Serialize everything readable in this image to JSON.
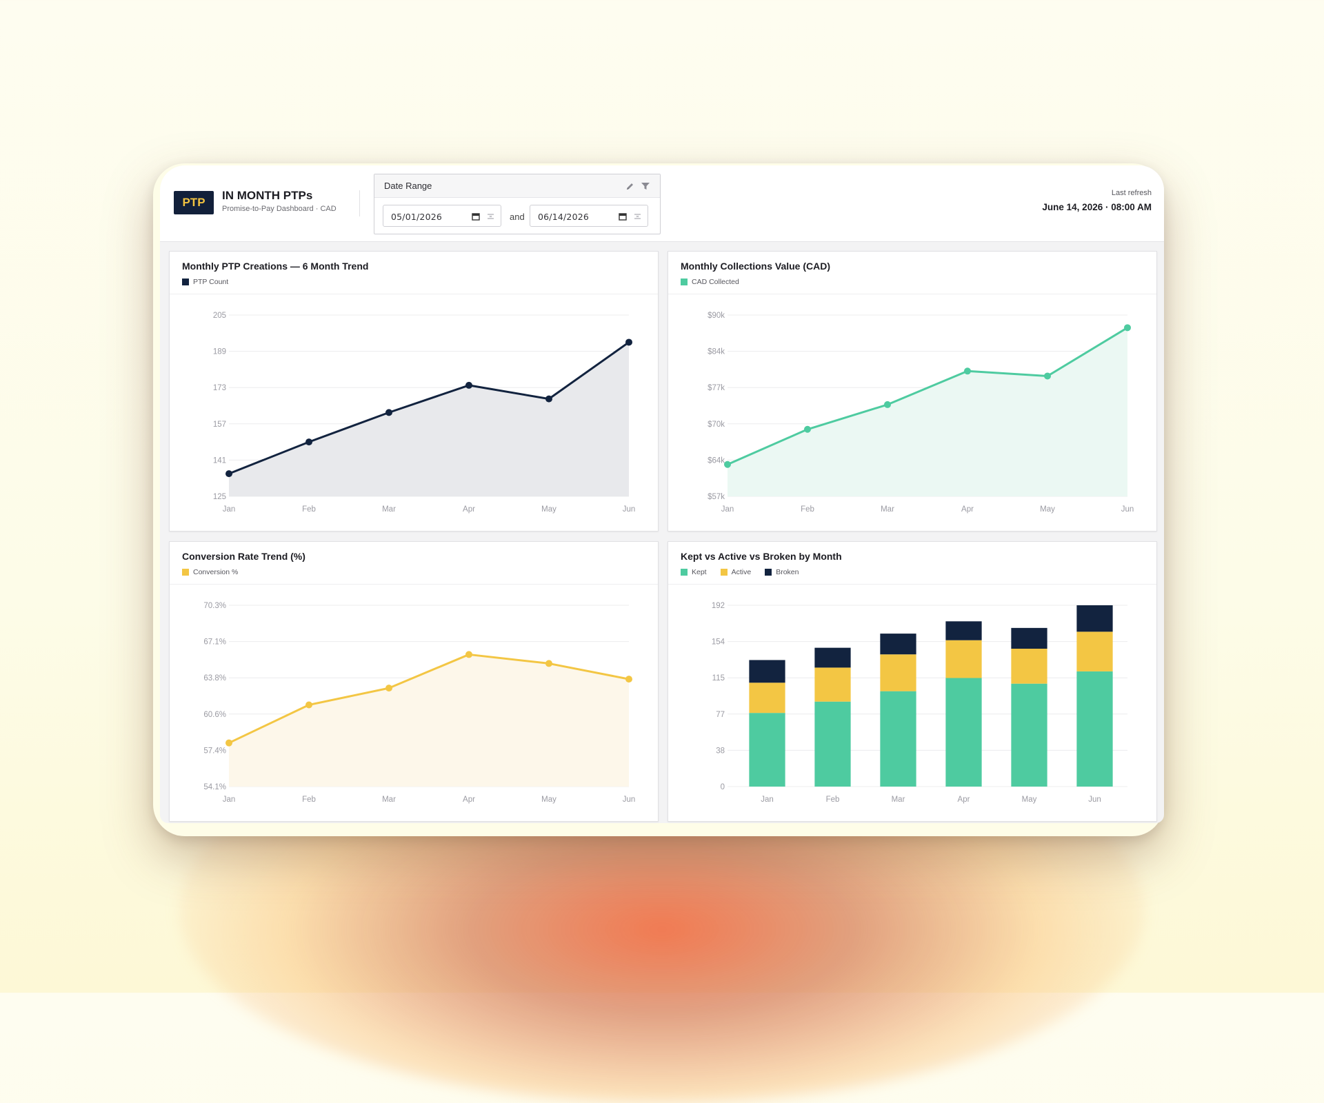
{
  "header": {
    "logo_text": "PTP",
    "title": "IN MONTH PTPs",
    "subtitle": "Promise-to-Pay Dashboard · CAD",
    "refresh_label": "Last refresh",
    "refresh_value": "June 14, 2026 · 08:00 AM"
  },
  "filter": {
    "label": "Date Range",
    "start_value": "05/01/2026",
    "end_value": "06/14/2026",
    "joiner": "and",
    "edit_icon": "pencil-icon",
    "filter_icon": "funnel-icon",
    "calendar_icon": "calendar-icon",
    "clear_icon": "clear-icon"
  },
  "colors": {
    "navy": "#12233f",
    "green": "#4ecba0",
    "yellow": "#f3c644"
  },
  "chart_data": [
    {
      "type": "area",
      "title": "Monthly PTP Creations — 6 Month Trend",
      "categories": [
        "Jan",
        "Feb",
        "Mar",
        "Apr",
        "May",
        "Jun"
      ],
      "series": [
        {
          "name": "PTP Count",
          "values": [
            135,
            149,
            162,
            174,
            168,
            193
          ],
          "color": "#12233f",
          "fill": "#e8e9ec"
        }
      ],
      "yticks": [
        "205",
        "189",
        "173",
        "157",
        "141",
        "125"
      ],
      "ylim": [
        125,
        205
      ],
      "grid": true,
      "legend": "top-left"
    },
    {
      "type": "area",
      "title": "Monthly Collections Value (CAD)",
      "categories": [
        "Jan",
        "Feb",
        "Mar",
        "Apr",
        "May",
        "Jun"
      ],
      "series": [
        {
          "name": "CAD Collected",
          "values": [
            62800,
            69200,
            73700,
            79800,
            78900,
            87700
          ],
          "color": "#4ecba0",
          "fill": "#ebf8f3"
        }
      ],
      "yticks": [
        "$90k",
        "$84k",
        "$77k",
        "$70k",
        "$64k",
        "$57k"
      ],
      "ylim": [
        57000,
        90000
      ],
      "grid": true,
      "legend": "top-left"
    },
    {
      "type": "area",
      "title": "Conversion Rate Trend (%)",
      "categories": [
        "Jan",
        "Feb",
        "Mar",
        "Apr",
        "May",
        "Jun"
      ],
      "series": [
        {
          "name": "Conversion %",
          "values": [
            58.0,
            61.4,
            62.9,
            65.9,
            65.1,
            63.7
          ],
          "color": "#f3c644",
          "fill": "#fdf7ea"
        }
      ],
      "yticks": [
        "70.3%",
        "67.1%",
        "63.8%",
        "60.6%",
        "57.4%",
        "54.1%"
      ],
      "ylim": [
        54.1,
        70.3
      ],
      "grid": true,
      "legend": "top-left"
    },
    {
      "type": "bar",
      "stacked": true,
      "title": "Kept vs Active vs Broken by Month",
      "categories": [
        "Jan",
        "Feb",
        "Mar",
        "Apr",
        "May",
        "Jun"
      ],
      "series": [
        {
          "name": "Kept",
          "values": [
            78,
            90,
            101,
            115,
            109,
            122
          ],
          "color": "#4ecba0"
        },
        {
          "name": "Active",
          "values": [
            32,
            36,
            39,
            40,
            37,
            42
          ],
          "color": "#f3c644"
        },
        {
          "name": "Broken",
          "values": [
            24,
            21,
            22,
            20,
            22,
            28
          ],
          "color": "#12233f"
        }
      ],
      "yticks": [
        "192",
        "154",
        "115",
        "77",
        "38",
        "0"
      ],
      "ylim": [
        0,
        192
      ],
      "grid": true,
      "legend": "top-left"
    }
  ]
}
